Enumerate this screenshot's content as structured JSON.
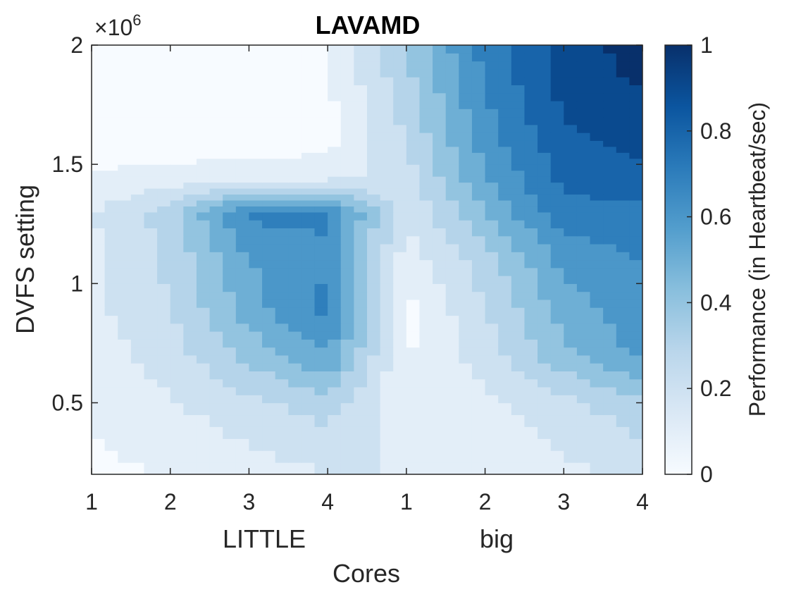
{
  "chart_data": {
    "type": "heatmap",
    "title": "LAVAMD",
    "xlabel": "Cores",
    "ylabel": "DVFS setting",
    "y_exponent": "×10",
    "y_exponent_power": "6",
    "group_labels": [
      "LITTLE",
      "big"
    ],
    "x_tick_labels": [
      "1",
      "2",
      "3",
      "4",
      "1",
      "2",
      "3",
      "4"
    ],
    "y_ticks": [
      0.5,
      1,
      1.5,
      2
    ],
    "y_tick_labels": [
      "0.5",
      "1",
      "1.5",
      "2"
    ],
    "ylim": [
      0.2,
      2.0
    ],
    "colorbar": {
      "label": "Performance (in Heartbeat/sec)",
      "ticks": [
        0,
        0.2,
        0.4,
        0.6,
        0.8,
        1
      ],
      "tick_labels": [
        "0",
        "0.2",
        "0.4",
        "0.6",
        "0.8",
        "1"
      ],
      "range": [
        0,
        1
      ],
      "colors": [
        "#f7fbff",
        "#dae8f5",
        "#bad6eb",
        "#89bfdd",
        "#539ecd",
        "#2b7bba",
        "#0b559f",
        "#08306b"
      ]
    },
    "y_levels": [
      0.2,
      0.5,
      0.7,
      0.9,
      1.1,
      1.3,
      1.45,
      1.6,
      1.8,
      2.0
    ],
    "values": [
      [
        0.03,
        0.05,
        0.1,
        0.15,
        0.15,
        0.08,
        0.12,
        0.18
      ],
      [
        0.06,
        0.14,
        0.22,
        0.3,
        0.05,
        0.12,
        0.22,
        0.32
      ],
      [
        0.1,
        0.2,
        0.38,
        0.55,
        0.04,
        0.2,
        0.42,
        0.58
      ],
      [
        0.12,
        0.25,
        0.5,
        0.7,
        0.02,
        0.25,
        0.5,
        0.62
      ],
      [
        0.13,
        0.27,
        0.55,
        0.62,
        0.1,
        0.3,
        0.58,
        0.65
      ],
      [
        0.14,
        0.3,
        0.68,
        0.68,
        0.15,
        0.45,
        0.72,
        0.72
      ],
      [
        0.06,
        0.08,
        0.1,
        0.1,
        0.2,
        0.55,
        0.78,
        0.82
      ],
      [
        0.0,
        0.0,
        0.0,
        0.02,
        0.25,
        0.6,
        0.82,
        0.88
      ],
      [
        0.0,
        0.0,
        0.0,
        0.03,
        0.3,
        0.65,
        0.88,
        0.95
      ],
      [
        0.0,
        0.0,
        0.0,
        0.05,
        0.35,
        0.7,
        0.9,
        1.0
      ]
    ]
  }
}
